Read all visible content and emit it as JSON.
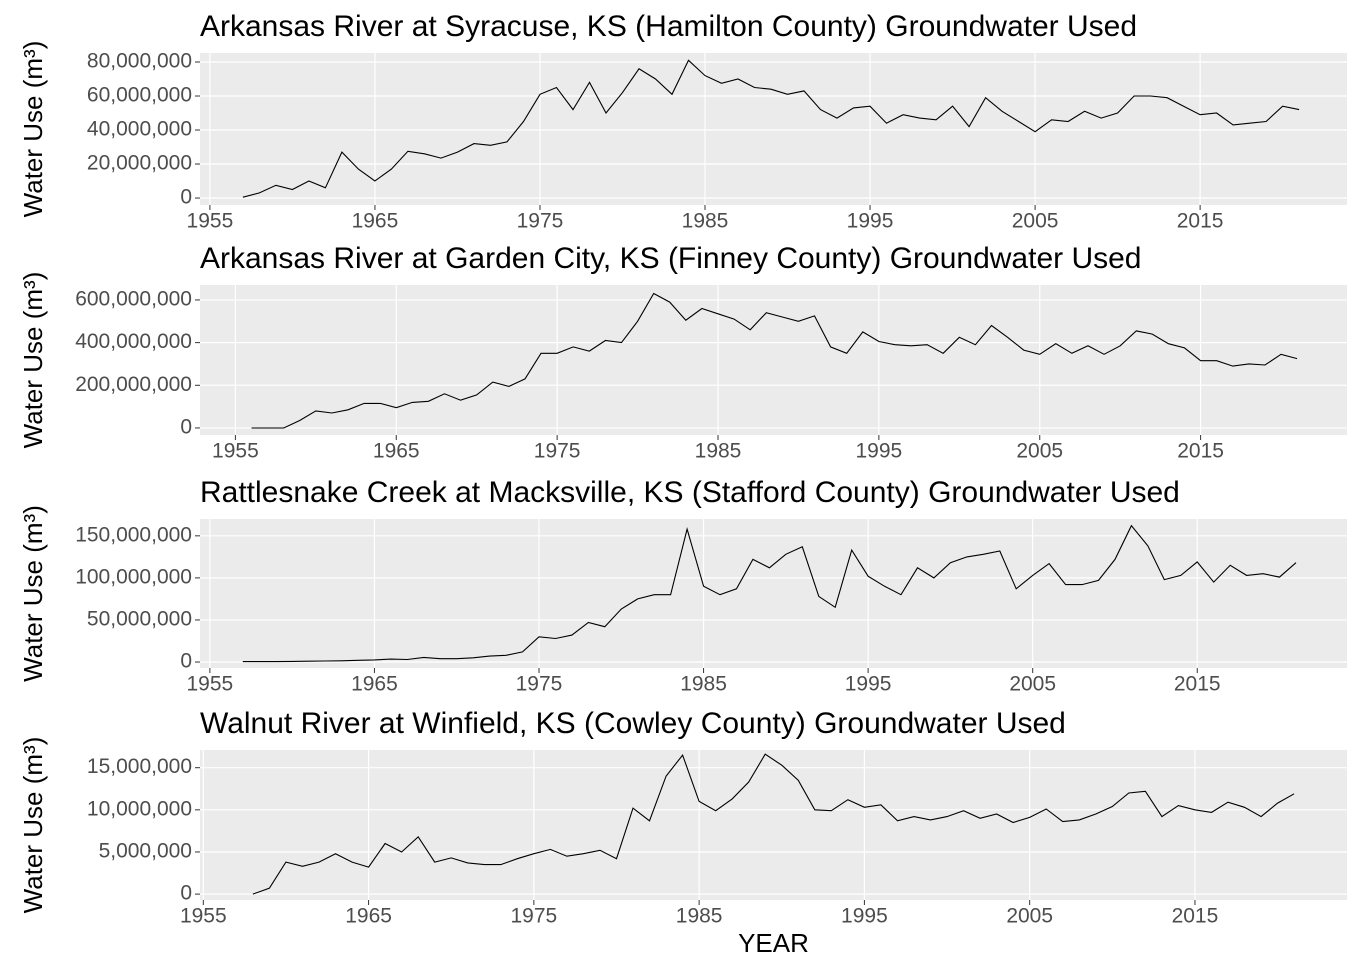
{
  "chart_data": [
    {
      "type": "line",
      "title": "Arkansas River at Syracuse, KS (Hamilton County) Groundwater Used",
      "y_label": "Water Use (m³)",
      "x": [
        1957,
        1958,
        1959,
        1960,
        1961,
        1962,
        1963,
        1964,
        1965,
        1966,
        1967,
        1968,
        1969,
        1970,
        1971,
        1972,
        1973,
        1974,
        1975,
        1976,
        1977,
        1978,
        1979,
        1980,
        1981,
        1982,
        1983,
        1984,
        1985,
        1986,
        1987,
        1988,
        1989,
        1990,
        1991,
        1992,
        1993,
        1994,
        1995,
        1996,
        1997,
        1998,
        1999,
        2000,
        2001,
        2002,
        2003,
        2004,
        2005,
        2006,
        2007,
        2008,
        2009,
        2010,
        2011,
        2012,
        2013,
        2014,
        2015,
        2016,
        2017,
        2018,
        2019,
        2020,
        2021
      ],
      "series": [
        {
          "name": "Groundwater Used",
          "color": "#000000",
          "values": [
            500000,
            3000000,
            7500000,
            5000000,
            10000000,
            6000000,
            27000000,
            17000000,
            10000000,
            17000000,
            27500000,
            26000000,
            23500000,
            27000000,
            32000000,
            31000000,
            33000000,
            45000000,
            61000000,
            65000000,
            52000000,
            68000000,
            50000000,
            62000000,
            76000000,
            70000000,
            61000000,
            81000000,
            72000000,
            67500000,
            70000000,
            65000000,
            64000000,
            61000000,
            63000000,
            52000000,
            47000000,
            53000000,
            54000000,
            44000000,
            49000000,
            47000000,
            46000000,
            54000000,
            42000000,
            59000000,
            51000000,
            45000000,
            39000000,
            46000000,
            45000000,
            51000000,
            47000000,
            50000000,
            60000000,
            60000000,
            59000000,
            54000000,
            49000000,
            50000000,
            43000000,
            44000000,
            45000000,
            54000000,
            52000000
          ]
        }
      ],
      "xlim": [
        1954.4,
        2023.9
      ],
      "xticks": [
        1955,
        1965,
        1975,
        1985,
        1995,
        2005,
        2015
      ],
      "ylim": [
        -4100000,
        85300000
      ],
      "yticks": [
        0,
        {
          "value": 20000000,
          "label": "20,000,000"
        },
        {
          "value": 40000000,
          "label": "40,000,000"
        },
        {
          "value": 60000000,
          "label": "60,000,000"
        },
        {
          "value": 80000000,
          "label": "80,000,000"
        }
      ],
      "grid": true
    },
    {
      "type": "line",
      "title": "Arkansas River at Garden City, KS (Finney County) Groundwater Used",
      "y_label": "Water Use (m³)",
      "x": [
        1956,
        1957,
        1958,
        1959,
        1960,
        1961,
        1962,
        1963,
        1964,
        1965,
        1966,
        1967,
        1968,
        1969,
        1970,
        1971,
        1972,
        1973,
        1974,
        1975,
        1976,
        1977,
        1978,
        1979,
        1980,
        1981,
        1982,
        1983,
        1984,
        1985,
        1986,
        1987,
        1988,
        1989,
        1990,
        1991,
        1992,
        1993,
        1994,
        1995,
        1996,
        1997,
        1998,
        1999,
        2000,
        2001,
        2002,
        2003,
        2004,
        2005,
        2006,
        2007,
        2008,
        2009,
        2010,
        2011,
        2012,
        2013,
        2014,
        2015,
        2016,
        2017,
        2018,
        2019,
        2020,
        2021
      ],
      "series": [
        {
          "name": "Groundwater Used",
          "color": "#000000",
          "values": [
            0,
            0,
            0,
            35000000,
            80000000,
            70000000,
            85000000,
            115000000,
            115000000,
            95000000,
            120000000,
            125000000,
            160000000,
            130000000,
            155000000,
            215000000,
            195000000,
            230000000,
            350000000,
            350000000,
            380000000,
            360000000,
            410000000,
            400000000,
            500000000,
            630000000,
            590000000,
            505000000,
            560000000,
            535000000,
            510000000,
            460000000,
            540000000,
            520000000,
            500000000,
            525000000,
            380000000,
            350000000,
            450000000,
            405000000,
            390000000,
            385000000,
            390000000,
            350000000,
            425000000,
            390000000,
            480000000,
            425000000,
            365000000,
            345000000,
            395000000,
            350000000,
            385000000,
            345000000,
            385000000,
            455000000,
            440000000,
            395000000,
            375000000,
            315000000,
            315000000,
            290000000,
            300000000,
            295000000,
            345000000,
            325000000
          ]
        }
      ],
      "xlim": [
        1952.8,
        2024.1
      ],
      "xticks": [
        1955,
        1965,
        1975,
        1985,
        1995,
        2005,
        2015
      ],
      "ylim": [
        -33000000,
        670000000
      ],
      "yticks": [
        0,
        {
          "value": 200000000,
          "label": "200,000,000"
        },
        {
          "value": 400000000,
          "label": "400,000,000"
        },
        {
          "value": 600000000,
          "label": "600,000,000"
        }
      ],
      "grid": true
    },
    {
      "type": "line",
      "title": "Rattlesnake Creek at Macksville, KS (Stafford County) Groundwater Used",
      "y_label": "Water Use (m³)",
      "x": [
        1957,
        1958,
        1959,
        1960,
        1961,
        1962,
        1963,
        1964,
        1965,
        1966,
        1967,
        1968,
        1969,
        1970,
        1971,
        1972,
        1973,
        1974,
        1975,
        1976,
        1977,
        1978,
        1979,
        1980,
        1981,
        1982,
        1983,
        1984,
        1985,
        1986,
        1987,
        1988,
        1989,
        1990,
        1991,
        1992,
        1993,
        1994,
        1995,
        1996,
        1997,
        1998,
        1999,
        2000,
        2001,
        2002,
        2003,
        2004,
        2005,
        2006,
        2007,
        2008,
        2009,
        2010,
        2011,
        2012,
        2013,
        2014,
        2015,
        2016,
        2017,
        2018,
        2019,
        2020,
        2021
      ],
      "series": [
        {
          "name": "Groundwater Used",
          "color": "#000000",
          "values": [
            500000,
            500000,
            500000,
            800000,
            1000000,
            1200000,
            1500000,
            2000000,
            2500000,
            3500000,
            3000000,
            5500000,
            4000000,
            4000000,
            5000000,
            7000000,
            8000000,
            12000000,
            30000000,
            28000000,
            32000000,
            47000000,
            42000000,
            63000000,
            75000000,
            80000000,
            80000000,
            158000000,
            90000000,
            80000000,
            87000000,
            122000000,
            112000000,
            128000000,
            137000000,
            78000000,
            65000000,
            133000000,
            102000000,
            90000000,
            80000000,
            112000000,
            100000000,
            118000000,
            125000000,
            128000000,
            132000000,
            87000000,
            103000000,
            117000000,
            92000000,
            92000000,
            97000000,
            122000000,
            162000000,
            138000000,
            98000000,
            103000000,
            119000000,
            95000000,
            115000000,
            103000000,
            105000000,
            101000000,
            118000000
          ]
        }
      ],
      "xlim": [
        1954.4,
        2024.1
      ],
      "xticks": [
        1955,
        1965,
        1975,
        1985,
        1995,
        2005,
        2015
      ],
      "ylim": [
        -7100000,
        170000000
      ],
      "yticks": [
        0,
        {
          "value": 50000000,
          "label": "50,000,000"
        },
        {
          "value": 100000000,
          "label": "100,000,000"
        },
        {
          "value": 150000000,
          "label": "150,000,000"
        }
      ],
      "grid": true
    },
    {
      "type": "line",
      "title": "Walnut River at Winfield, KS (Cowley County) Groundwater Used",
      "y_label": "Water Use (m³)",
      "x_label": "YEAR",
      "x": [
        1958,
        1959,
        1960,
        1961,
        1962,
        1963,
        1964,
        1965,
        1966,
        1967,
        1968,
        1969,
        1970,
        1971,
        1972,
        1973,
        1974,
        1975,
        1976,
        1977,
        1978,
        1979,
        1980,
        1981,
        1982,
        1983,
        1984,
        1985,
        1986,
        1987,
        1988,
        1989,
        1990,
        1991,
        1992,
        1993,
        1994,
        1995,
        1996,
        1997,
        1998,
        1999,
        2000,
        2001,
        2002,
        2003,
        2004,
        2005,
        2006,
        2007,
        2008,
        2009,
        2010,
        2011,
        2012,
        2013,
        2014,
        2015,
        2016,
        2017,
        2018,
        2019,
        2020,
        2021
      ],
      "series": [
        {
          "name": "Groundwater Used",
          "color": "#000000",
          "values": [
            0,
            700000,
            3800000,
            3300000,
            3800000,
            4800000,
            3800000,
            3200000,
            6000000,
            5000000,
            6800000,
            3800000,
            4300000,
            3700000,
            3500000,
            3500000,
            4200000,
            4800000,
            5300000,
            4500000,
            4800000,
            5200000,
            4200000,
            10200000,
            8700000,
            14000000,
            16500000,
            11000000,
            9900000,
            11300000,
            13300000,
            16600000,
            15300000,
            13500000,
            10000000,
            9900000,
            11200000,
            10300000,
            10600000,
            8700000,
            9200000,
            8800000,
            9200000,
            9900000,
            9000000,
            9500000,
            8500000,
            9100000,
            10100000,
            8600000,
            8800000,
            9500000,
            10400000,
            12000000,
            12200000,
            9200000,
            10500000,
            10000000,
            9700000,
            10900000,
            10300000,
            9200000,
            10800000,
            11900000
          ]
        }
      ],
      "xlim": [
        1954.8,
        2024.2
      ],
      "xticks": [
        1955,
        1965,
        1975,
        1985,
        1995,
        2005,
        2015
      ],
      "ylim": [
        -700000,
        17100000
      ],
      "yticks": [
        0,
        {
          "value": 5000000,
          "label": "5,000,000"
        },
        {
          "value": 10000000,
          "label": "10,000,000"
        },
        {
          "value": 15000000,
          "label": "15,000,000"
        }
      ],
      "grid": true
    }
  ]
}
